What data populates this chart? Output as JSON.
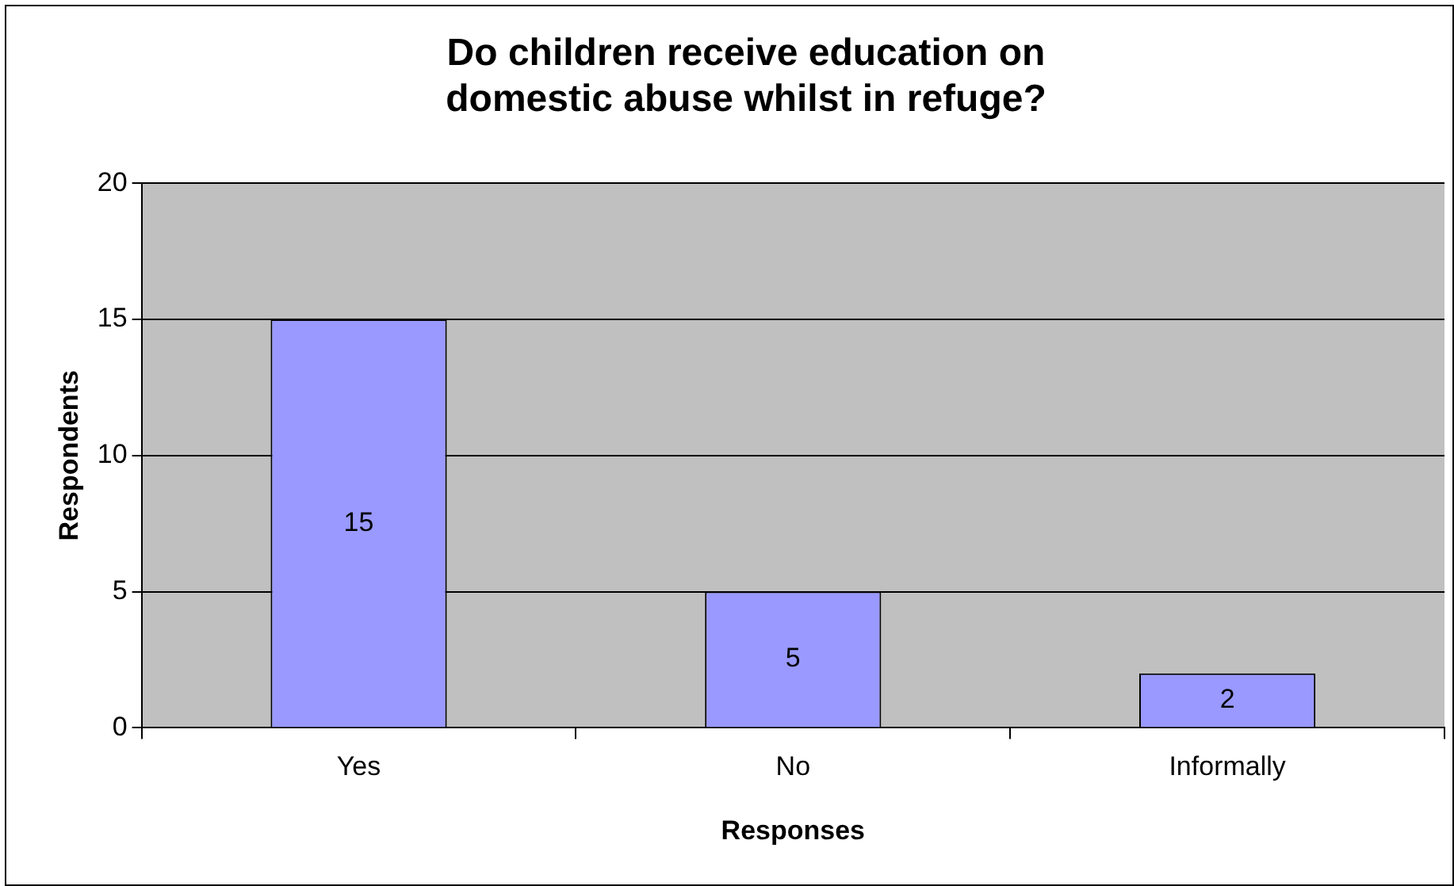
{
  "chart_data": {
    "type": "bar",
    "title": "Do children receive education on\ndomestic abuse whilst in refuge?",
    "xlabel": "Responses",
    "ylabel": "Respondents",
    "categories": [
      "Yes",
      "No",
      "Informally"
    ],
    "values": [
      15,
      5,
      2
    ],
    "color": "#9999ff",
    "ylim": [
      0,
      20
    ],
    "yticks": [
      0,
      5,
      10,
      15,
      20
    ],
    "grid": "y",
    "legend": false,
    "data_labels": true
  }
}
